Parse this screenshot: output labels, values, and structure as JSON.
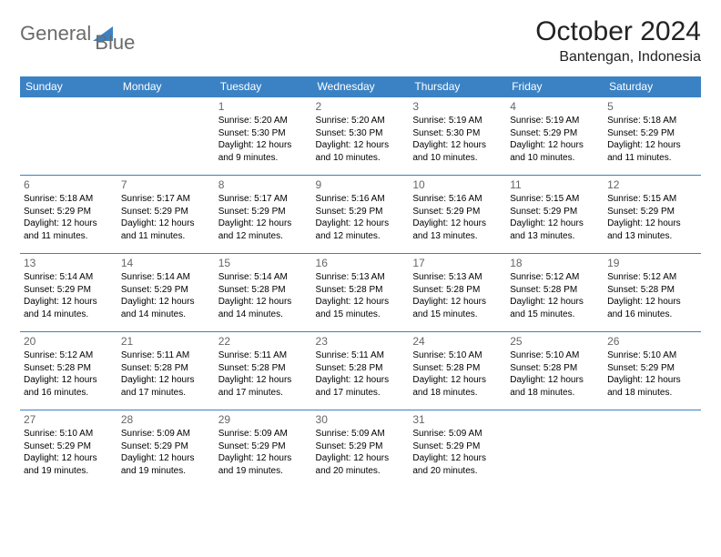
{
  "logo": {
    "text1": "General",
    "text2": "Blue"
  },
  "title": "October 2024",
  "location": "Bantengan, Indonesia",
  "colors": {
    "header_bg": "#3b82c4",
    "header_text": "#ffffff",
    "border": "#3b82c4",
    "daynum": "#666666"
  },
  "weekdays": [
    "Sunday",
    "Monday",
    "Tuesday",
    "Wednesday",
    "Thursday",
    "Friday",
    "Saturday"
  ],
  "weeks": [
    [
      null,
      null,
      {
        "n": "1",
        "sr": "Sunrise: 5:20 AM",
        "ss": "Sunset: 5:30 PM",
        "dl": "Daylight: 12 hours and 9 minutes."
      },
      {
        "n": "2",
        "sr": "Sunrise: 5:20 AM",
        "ss": "Sunset: 5:30 PM",
        "dl": "Daylight: 12 hours and 10 minutes."
      },
      {
        "n": "3",
        "sr": "Sunrise: 5:19 AM",
        "ss": "Sunset: 5:30 PM",
        "dl": "Daylight: 12 hours and 10 minutes."
      },
      {
        "n": "4",
        "sr": "Sunrise: 5:19 AM",
        "ss": "Sunset: 5:29 PM",
        "dl": "Daylight: 12 hours and 10 minutes."
      },
      {
        "n": "5",
        "sr": "Sunrise: 5:18 AM",
        "ss": "Sunset: 5:29 PM",
        "dl": "Daylight: 12 hours and 11 minutes."
      }
    ],
    [
      {
        "n": "6",
        "sr": "Sunrise: 5:18 AM",
        "ss": "Sunset: 5:29 PM",
        "dl": "Daylight: 12 hours and 11 minutes."
      },
      {
        "n": "7",
        "sr": "Sunrise: 5:17 AM",
        "ss": "Sunset: 5:29 PM",
        "dl": "Daylight: 12 hours and 11 minutes."
      },
      {
        "n": "8",
        "sr": "Sunrise: 5:17 AM",
        "ss": "Sunset: 5:29 PM",
        "dl": "Daylight: 12 hours and 12 minutes."
      },
      {
        "n": "9",
        "sr": "Sunrise: 5:16 AM",
        "ss": "Sunset: 5:29 PM",
        "dl": "Daylight: 12 hours and 12 minutes."
      },
      {
        "n": "10",
        "sr": "Sunrise: 5:16 AM",
        "ss": "Sunset: 5:29 PM",
        "dl": "Daylight: 12 hours and 13 minutes."
      },
      {
        "n": "11",
        "sr": "Sunrise: 5:15 AM",
        "ss": "Sunset: 5:29 PM",
        "dl": "Daylight: 12 hours and 13 minutes."
      },
      {
        "n": "12",
        "sr": "Sunrise: 5:15 AM",
        "ss": "Sunset: 5:29 PM",
        "dl": "Daylight: 12 hours and 13 minutes."
      }
    ],
    [
      {
        "n": "13",
        "sr": "Sunrise: 5:14 AM",
        "ss": "Sunset: 5:29 PM",
        "dl": "Daylight: 12 hours and 14 minutes."
      },
      {
        "n": "14",
        "sr": "Sunrise: 5:14 AM",
        "ss": "Sunset: 5:29 PM",
        "dl": "Daylight: 12 hours and 14 minutes."
      },
      {
        "n": "15",
        "sr": "Sunrise: 5:14 AM",
        "ss": "Sunset: 5:28 PM",
        "dl": "Daylight: 12 hours and 14 minutes."
      },
      {
        "n": "16",
        "sr": "Sunrise: 5:13 AM",
        "ss": "Sunset: 5:28 PM",
        "dl": "Daylight: 12 hours and 15 minutes."
      },
      {
        "n": "17",
        "sr": "Sunrise: 5:13 AM",
        "ss": "Sunset: 5:28 PM",
        "dl": "Daylight: 12 hours and 15 minutes."
      },
      {
        "n": "18",
        "sr": "Sunrise: 5:12 AM",
        "ss": "Sunset: 5:28 PM",
        "dl": "Daylight: 12 hours and 15 minutes."
      },
      {
        "n": "19",
        "sr": "Sunrise: 5:12 AM",
        "ss": "Sunset: 5:28 PM",
        "dl": "Daylight: 12 hours and 16 minutes."
      }
    ],
    [
      {
        "n": "20",
        "sr": "Sunrise: 5:12 AM",
        "ss": "Sunset: 5:28 PM",
        "dl": "Daylight: 12 hours and 16 minutes."
      },
      {
        "n": "21",
        "sr": "Sunrise: 5:11 AM",
        "ss": "Sunset: 5:28 PM",
        "dl": "Daylight: 12 hours and 17 minutes."
      },
      {
        "n": "22",
        "sr": "Sunrise: 5:11 AM",
        "ss": "Sunset: 5:28 PM",
        "dl": "Daylight: 12 hours and 17 minutes."
      },
      {
        "n": "23",
        "sr": "Sunrise: 5:11 AM",
        "ss": "Sunset: 5:28 PM",
        "dl": "Daylight: 12 hours and 17 minutes."
      },
      {
        "n": "24",
        "sr": "Sunrise: 5:10 AM",
        "ss": "Sunset: 5:28 PM",
        "dl": "Daylight: 12 hours and 18 minutes."
      },
      {
        "n": "25",
        "sr": "Sunrise: 5:10 AM",
        "ss": "Sunset: 5:28 PM",
        "dl": "Daylight: 12 hours and 18 minutes."
      },
      {
        "n": "26",
        "sr": "Sunrise: 5:10 AM",
        "ss": "Sunset: 5:29 PM",
        "dl": "Daylight: 12 hours and 18 minutes."
      }
    ],
    [
      {
        "n": "27",
        "sr": "Sunrise: 5:10 AM",
        "ss": "Sunset: 5:29 PM",
        "dl": "Daylight: 12 hours and 19 minutes."
      },
      {
        "n": "28",
        "sr": "Sunrise: 5:09 AM",
        "ss": "Sunset: 5:29 PM",
        "dl": "Daylight: 12 hours and 19 minutes."
      },
      {
        "n": "29",
        "sr": "Sunrise: 5:09 AM",
        "ss": "Sunset: 5:29 PM",
        "dl": "Daylight: 12 hours and 19 minutes."
      },
      {
        "n": "30",
        "sr": "Sunrise: 5:09 AM",
        "ss": "Sunset: 5:29 PM",
        "dl": "Daylight: 12 hours and 20 minutes."
      },
      {
        "n": "31",
        "sr": "Sunrise: 5:09 AM",
        "ss": "Sunset: 5:29 PM",
        "dl": "Daylight: 12 hours and 20 minutes."
      },
      null,
      null
    ]
  ]
}
